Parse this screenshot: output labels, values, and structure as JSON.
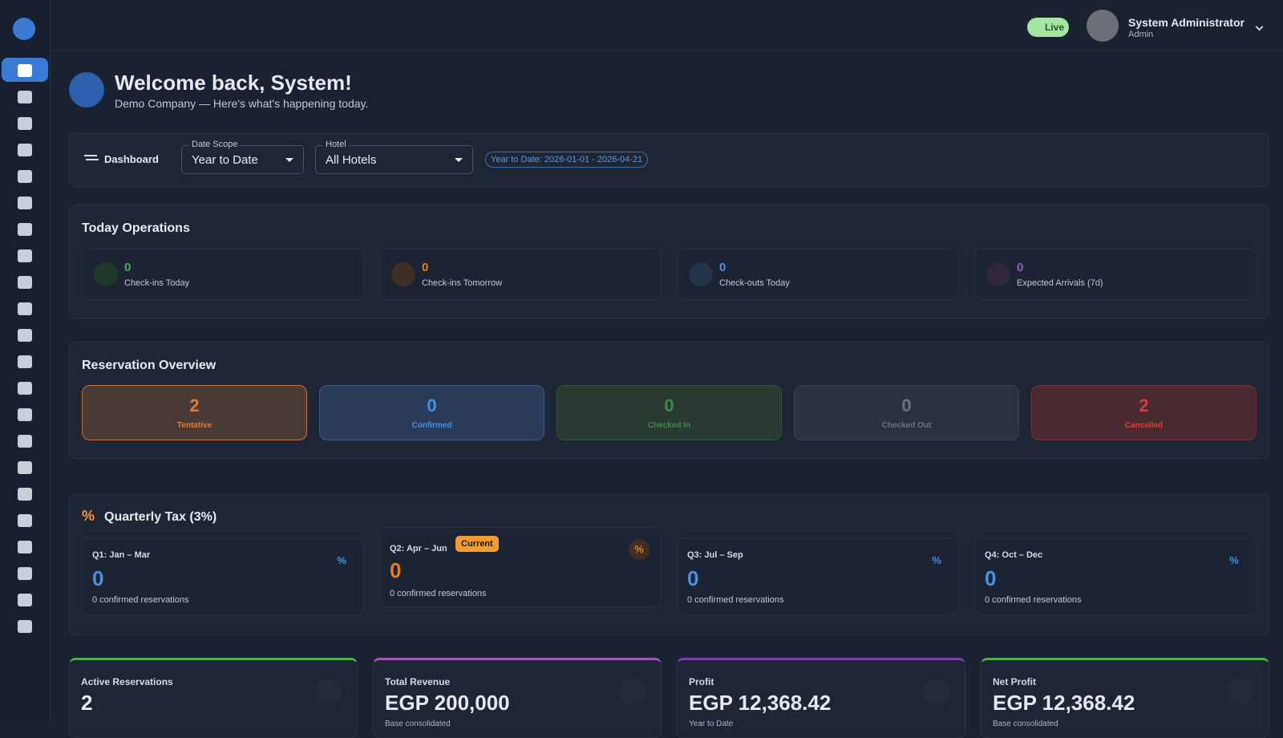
{
  "header": {
    "status": "Live",
    "user_name": "System Administrator",
    "user_role": "Admin"
  },
  "welcome": {
    "title": "Welcome back, System!",
    "subtitle": "Demo Company — Here's what's happening today."
  },
  "filters": {
    "label": "Dashboard",
    "date_scope": {
      "label": "Date Scope",
      "value": "Year to Date"
    },
    "hotel": {
      "label": "Hotel",
      "value": "All Hotels"
    },
    "range": "Year to Date: 2026-01-01 - 2026-04-21"
  },
  "today_operations": {
    "title": "Today Operations",
    "items": [
      {
        "value": "0",
        "label": "Check-ins Today"
      },
      {
        "value": "0",
        "label": "Check-ins Tomorrow"
      },
      {
        "value": "0",
        "label": "Check-outs Today"
      },
      {
        "value": "0",
        "label": "Expected Arrivals (7d)"
      }
    ]
  },
  "reservation_overview": {
    "title": "Reservation Overview",
    "items": [
      {
        "value": "2",
        "label": "Tentative"
      },
      {
        "value": "0",
        "label": "Confirmed"
      },
      {
        "value": "0",
        "label": "Checked In"
      },
      {
        "value": "0",
        "label": "Checked Out"
      },
      {
        "value": "2",
        "label": "Cancelled"
      }
    ]
  },
  "quarterly_tax": {
    "title": "Quarterly Tax (3%)",
    "quarters": [
      {
        "label": "Q1: Jan – Mar",
        "value": "0",
        "note": "0 confirmed reservations"
      },
      {
        "label": "Q2: Apr – Jun",
        "badge": "Current",
        "value": "0",
        "note": "0 confirmed reservations"
      },
      {
        "label": "Q3: Jul – Sep",
        "value": "0",
        "note": "0 confirmed reservations"
      },
      {
        "label": "Q4: Oct – Dec",
        "value": "0",
        "note": "0 confirmed reservations"
      }
    ]
  },
  "kpis": [
    {
      "label": "Active Reservations",
      "value": "2"
    },
    {
      "label": "Total Revenue",
      "value": "EGP 200,000",
      "note": "Base consolidated"
    },
    {
      "label": "Profit",
      "value": "EGP 12,368.42",
      "note": "Year to Date"
    },
    {
      "label": "Net Profit",
      "value": "EGP 12,368.42",
      "note": "Base consolidated"
    }
  ]
}
